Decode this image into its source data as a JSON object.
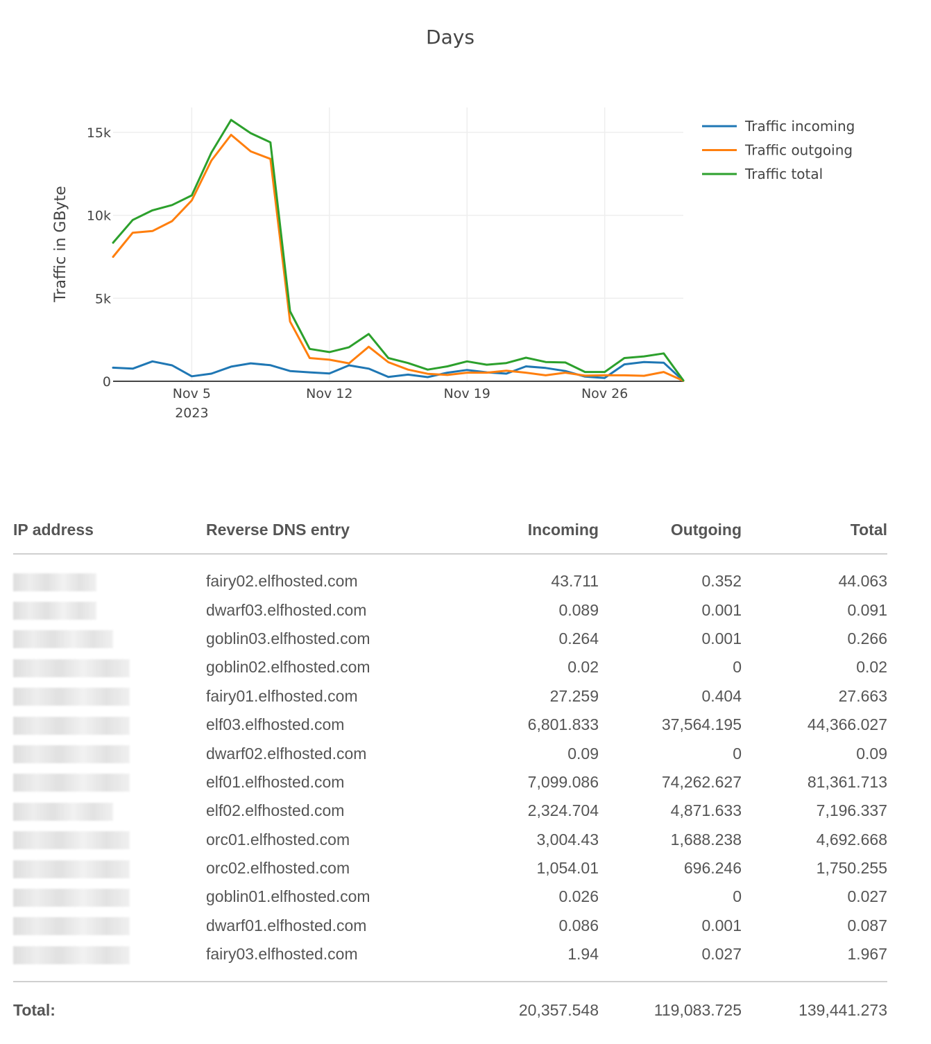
{
  "chart_data": {
    "type": "line",
    "title": "Days",
    "ylabel": "Traffic in GByte",
    "xlabel": "",
    "x": [
      "2023-11-01",
      "2023-11-02",
      "2023-11-03",
      "2023-11-04",
      "2023-11-05",
      "2023-11-06",
      "2023-11-07",
      "2023-11-08",
      "2023-11-09",
      "2023-11-10",
      "2023-11-11",
      "2023-11-12",
      "2023-11-13",
      "2023-11-14",
      "2023-11-15",
      "2023-11-16",
      "2023-11-17",
      "2023-11-18",
      "2023-11-19",
      "2023-11-20",
      "2023-11-21",
      "2023-11-22",
      "2023-11-23",
      "2023-11-24",
      "2023-11-25",
      "2023-11-26",
      "2023-11-27",
      "2023-11-28",
      "2023-11-29",
      "2023-11-30"
    ],
    "x_ticks": [
      {
        "date": "2023-11-05",
        "label": "Nov 5",
        "sublabel": "2023"
      },
      {
        "date": "2023-11-12",
        "label": "Nov 12",
        "sublabel": ""
      },
      {
        "date": "2023-11-19",
        "label": "Nov 19",
        "sublabel": ""
      },
      {
        "date": "2023-11-26",
        "label": "Nov 26",
        "sublabel": ""
      }
    ],
    "y_ticks": [
      0,
      5000,
      10000,
      15000
    ],
    "y_tick_labels": [
      "0",
      "5k",
      "10k",
      "15k"
    ],
    "ylim": [
      0,
      16500
    ],
    "grid": true,
    "legend_position": "top-right",
    "series": [
      {
        "name": "Traffic incoming",
        "color": "#1f77b4",
        "values": [
          820,
          760,
          1200,
          960,
          300,
          460,
          880,
          1080,
          970,
          620,
          540,
          470,
          960,
          760,
          260,
          400,
          250,
          520,
          680,
          540,
          460,
          900,
          800,
          620,
          280,
          200,
          1020,
          1160,
          1120,
          30
        ]
      },
      {
        "name": "Traffic outgoing",
        "color": "#ff7f0e",
        "values": [
          7500,
          8950,
          9050,
          9650,
          10900,
          13300,
          14850,
          13850,
          13400,
          3600,
          1400,
          1300,
          1080,
          2080,
          1150,
          700,
          450,
          380,
          520,
          520,
          640,
          520,
          360,
          520,
          340,
          360,
          360,
          330,
          560,
          30
        ]
      },
      {
        "name": "Traffic total",
        "color": "#2ca02c",
        "values": [
          8350,
          9720,
          10300,
          10620,
          11200,
          13780,
          15750,
          14950,
          14400,
          4220,
          1950,
          1760,
          2050,
          2850,
          1400,
          1100,
          700,
          900,
          1200,
          1000,
          1100,
          1420,
          1160,
          1130,
          560,
          560,
          1400,
          1500,
          1680,
          50
        ]
      }
    ]
  },
  "table": {
    "headers": {
      "ip": "IP address",
      "dns": "Reverse DNS entry",
      "incoming": "Incoming",
      "outgoing": "Outgoing",
      "total": "Total"
    },
    "rows": [
      {
        "ip_masked": true,
        "dns": "fairy02.elfhosted.com",
        "incoming": "43.711",
        "outgoing": "0.352",
        "total": "44.063"
      },
      {
        "ip_masked": true,
        "dns": "dwarf03.elfhosted.com",
        "incoming": "0.089",
        "outgoing": "0.001",
        "total": "0.091"
      },
      {
        "ip_masked": true,
        "dns": "goblin03.elfhosted.com",
        "incoming": "0.264",
        "outgoing": "0.001",
        "total": "0.266"
      },
      {
        "ip_masked": true,
        "dns": "goblin02.elfhosted.com",
        "incoming": "0.02",
        "outgoing": "0",
        "total": "0.02"
      },
      {
        "ip_masked": true,
        "dns": "fairy01.elfhosted.com",
        "incoming": "27.259",
        "outgoing": "0.404",
        "total": "27.663"
      },
      {
        "ip_masked": true,
        "dns": "elf03.elfhosted.com",
        "incoming": "6,801.833",
        "outgoing": "37,564.195",
        "total": "44,366.027"
      },
      {
        "ip_masked": true,
        "dns": "dwarf02.elfhosted.com",
        "incoming": "0.09",
        "outgoing": "0",
        "total": "0.09"
      },
      {
        "ip_masked": true,
        "dns": "elf01.elfhosted.com",
        "incoming": "7,099.086",
        "outgoing": "74,262.627",
        "total": "81,361.713"
      },
      {
        "ip_masked": true,
        "dns": "elf02.elfhosted.com",
        "incoming": "2,324.704",
        "outgoing": "4,871.633",
        "total": "7,196.337"
      },
      {
        "ip_masked": true,
        "dns": "orc01.elfhosted.com",
        "incoming": "3,004.43",
        "outgoing": "1,688.238",
        "total": "4,692.668"
      },
      {
        "ip_masked": true,
        "dns": "orc02.elfhosted.com",
        "incoming": "1,054.01",
        "outgoing": "696.246",
        "total": "1,750.255"
      },
      {
        "ip_masked": true,
        "dns": "goblin01.elfhosted.com",
        "incoming": "0.026",
        "outgoing": "0",
        "total": "0.027"
      },
      {
        "ip_masked": true,
        "dns": "dwarf01.elfhosted.com",
        "incoming": "0.086",
        "outgoing": "0.001",
        "total": "0.087"
      },
      {
        "ip_masked": true,
        "dns": "fairy03.elfhosted.com",
        "incoming": "1.94",
        "outgoing": "0.027",
        "total": "1.967"
      }
    ],
    "footer": {
      "label": "Total:",
      "incoming": "20,357.548",
      "outgoing": "119,083.725",
      "total": "139,441.273"
    }
  }
}
